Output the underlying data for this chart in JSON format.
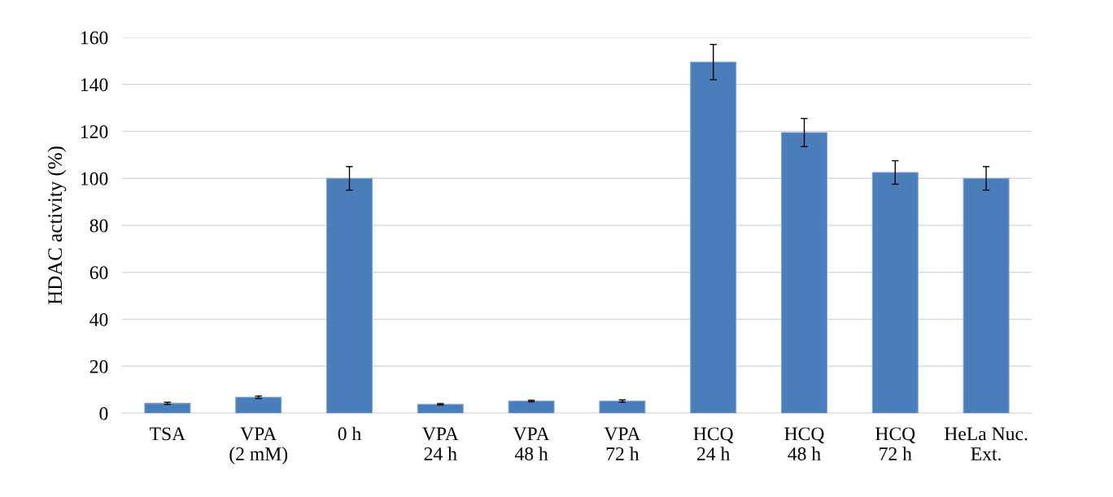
{
  "chart_data": {
    "type": "bar",
    "ylabel": "HDAC activity (%)",
    "categories": [
      "TSA",
      "VPA\n(2 mM)",
      "0 h",
      "VPA\n24 h",
      "VPA\n48 h",
      "VPA\n72 h",
      "HCQ\n24 h",
      "HCQ\n48 h",
      "HCQ\n72 h",
      "HeLa Nuc.\nExt."
    ],
    "values": [
      4.2,
      6.8,
      100,
      3.8,
      5.2,
      5.2,
      149.5,
      119.5,
      102.5,
      100
    ],
    "errors": [
      0.5,
      0.5,
      5,
      0.3,
      0.3,
      0.5,
      7.5,
      6,
      5,
      5
    ],
    "color": "#4a7ebb",
    "ylim": [
      0,
      160
    ],
    "yticks": [
      0,
      20,
      40,
      60,
      80,
      100,
      120,
      140,
      160
    ],
    "grid": "y"
  }
}
